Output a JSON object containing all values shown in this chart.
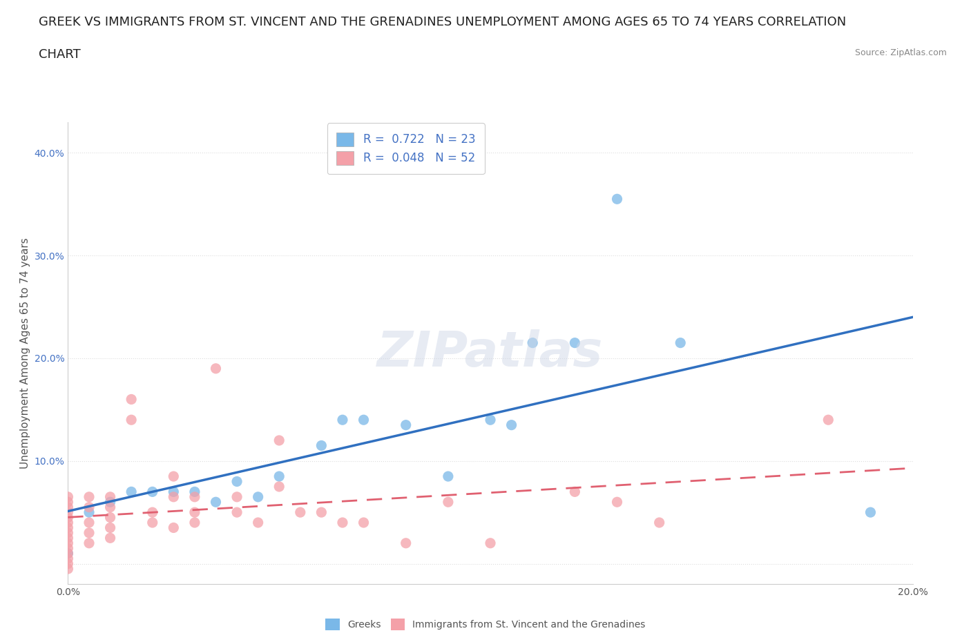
{
  "title_line1": "GREEK VS IMMIGRANTS FROM ST. VINCENT AND THE GRENADINES UNEMPLOYMENT AMONG AGES 65 TO 74 YEARS CORRELATION",
  "title_line2": "CHART",
  "source": "Source: ZipAtlas.com",
  "ylabel": "Unemployment Among Ages 65 to 74 years",
  "xlim": [
    0.0,
    0.2
  ],
  "ylim": [
    -0.02,
    0.43
  ],
  "xticks": [
    0.0,
    0.04,
    0.08,
    0.12,
    0.16,
    0.2
  ],
  "xtick_labels": [
    "0.0%",
    "",
    "",
    "",
    "",
    "20.0%"
  ],
  "yticks": [
    0.0,
    0.1,
    0.2,
    0.3,
    0.4
  ],
  "ytick_labels": [
    "",
    "10.0%",
    "20.0%",
    "30.0%",
    "40.0%"
  ],
  "greek_color": "#7ab8e8",
  "stvg_color": "#f4a0a8",
  "greek_line_color": "#3070c0",
  "stvg_line_color": "#e06070",
  "greek_R": 0.722,
  "greek_N": 23,
  "stvg_R": 0.048,
  "stvg_N": 52,
  "watermark": "ZIPatlas",
  "legend_color": "#4472c4",
  "greek_scatter_x": [
    0.0,
    0.005,
    0.01,
    0.015,
    0.02,
    0.025,
    0.03,
    0.035,
    0.04,
    0.045,
    0.05,
    0.06,
    0.065,
    0.07,
    0.08,
    0.09,
    0.1,
    0.105,
    0.11,
    0.12,
    0.13,
    0.145,
    0.19
  ],
  "greek_scatter_y": [
    0.01,
    0.05,
    0.06,
    0.07,
    0.07,
    0.07,
    0.07,
    0.06,
    0.08,
    0.065,
    0.085,
    0.115,
    0.14,
    0.14,
    0.135,
    0.085,
    0.14,
    0.135,
    0.215,
    0.215,
    0.355,
    0.215,
    0.05
  ],
  "stvg_scatter_x": [
    0.0,
    0.0,
    0.0,
    0.0,
    0.0,
    0.0,
    0.0,
    0.0,
    0.0,
    0.0,
    0.0,
    0.0,
    0.0,
    0.0,
    0.0,
    0.005,
    0.005,
    0.005,
    0.005,
    0.005,
    0.01,
    0.01,
    0.01,
    0.01,
    0.01,
    0.015,
    0.015,
    0.02,
    0.02,
    0.025,
    0.025,
    0.025,
    0.03,
    0.03,
    0.03,
    0.035,
    0.04,
    0.04,
    0.045,
    0.05,
    0.05,
    0.055,
    0.06,
    0.065,
    0.07,
    0.08,
    0.09,
    0.1,
    0.12,
    0.13,
    0.14,
    0.18
  ],
  "stvg_scatter_y": [
    0.065,
    0.06,
    0.055,
    0.05,
    0.045,
    0.04,
    0.035,
    0.03,
    0.025,
    0.02,
    0.015,
    0.01,
    0.005,
    0.0,
    -0.005,
    0.065,
    0.055,
    0.04,
    0.03,
    0.02,
    0.065,
    0.055,
    0.045,
    0.035,
    0.025,
    0.16,
    0.14,
    0.05,
    0.04,
    0.085,
    0.065,
    0.035,
    0.065,
    0.05,
    0.04,
    0.19,
    0.065,
    0.05,
    0.04,
    0.12,
    0.075,
    0.05,
    0.05,
    0.04,
    0.04,
    0.02,
    0.06,
    0.02,
    0.07,
    0.06,
    0.04,
    0.14
  ],
  "background_color": "#ffffff",
  "grid_color": "#dddddd",
  "title_fontsize": 13,
  "axis_label_fontsize": 11,
  "tick_fontsize": 10,
  "legend_fontsize": 12
}
